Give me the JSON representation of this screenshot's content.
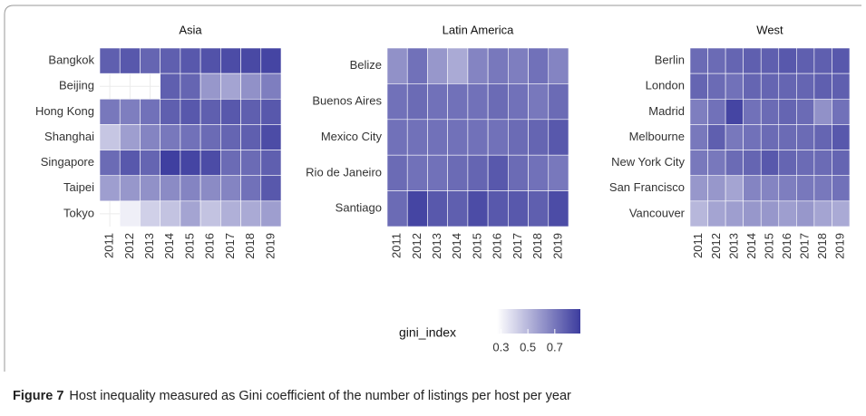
{
  "chart_data": [
    {
      "type": "heatmap",
      "title": "Asia",
      "x": [
        "2011",
        "2012",
        "2013",
        "2014",
        "2015",
        "2016",
        "2017",
        "2018",
        "2019"
      ],
      "y": [
        "Bangkok",
        "Beijing",
        "Hong Kong",
        "Shanghai",
        "Singapore",
        "Taipei",
        "Tokyo"
      ],
      "values": [
        [
          0.78,
          0.8,
          0.76,
          0.78,
          0.8,
          0.82,
          0.84,
          0.85,
          0.86
        ],
        [
          null,
          null,
          null,
          0.78,
          0.76,
          0.6,
          0.56,
          0.62,
          0.68
        ],
        [
          0.7,
          0.68,
          0.72,
          0.78,
          0.8,
          0.78,
          0.8,
          0.78,
          0.8
        ],
        [
          0.45,
          0.58,
          0.66,
          0.7,
          0.72,
          0.74,
          0.76,
          0.78,
          0.84
        ],
        [
          0.74,
          0.8,
          0.76,
          0.88,
          0.86,
          0.84,
          0.74,
          0.74,
          0.78
        ],
        [
          0.58,
          0.6,
          0.62,
          0.64,
          0.66,
          0.64,
          0.66,
          0.72,
          0.8
        ],
        [
          null,
          0.32,
          0.42,
          0.46,
          0.56,
          0.46,
          0.52,
          0.54,
          0.58
        ]
      ]
    },
    {
      "type": "heatmap",
      "title": "Latin America",
      "x": [
        "2011",
        "2012",
        "2013",
        "2014",
        "2015",
        "2016",
        "2017",
        "2018",
        "2019"
      ],
      "y": [
        "Belize",
        "Buenos Aires",
        "Mexico City",
        "Rio de Janeiro",
        "Santiago"
      ],
      "values": [
        [
          0.62,
          0.72,
          0.6,
          0.54,
          0.66,
          0.7,
          0.68,
          0.72,
          0.66
        ],
        [
          0.72,
          0.74,
          0.72,
          0.72,
          0.72,
          0.74,
          0.72,
          0.7,
          0.74
        ],
        [
          0.72,
          0.72,
          0.72,
          0.72,
          0.72,
          0.72,
          0.74,
          0.76,
          0.8
        ],
        [
          0.74,
          0.72,
          0.72,
          0.74,
          0.76,
          0.8,
          0.74,
          0.72,
          0.7
        ],
        [
          0.74,
          0.86,
          0.8,
          0.78,
          0.84,
          0.8,
          0.8,
          0.78,
          0.84
        ]
      ]
    },
    {
      "type": "heatmap",
      "title": "West",
      "x": [
        "2011",
        "2012",
        "2013",
        "2014",
        "2015",
        "2016",
        "2017",
        "2018",
        "2019"
      ],
      "y": [
        "Berlin",
        "London",
        "Madrid",
        "Melbourne",
        "New York City",
        "San Francisco",
        "Vancouver"
      ],
      "values": [
        [
          0.74,
          0.74,
          0.76,
          0.78,
          0.78,
          0.8,
          0.78,
          0.78,
          0.8
        ],
        [
          0.76,
          0.74,
          0.72,
          0.76,
          0.76,
          0.76,
          0.76,
          0.78,
          0.78
        ],
        [
          0.68,
          0.72,
          0.86,
          0.72,
          0.74,
          0.76,
          0.74,
          0.62,
          0.72
        ],
        [
          0.7,
          0.78,
          0.7,
          0.72,
          0.74,
          0.74,
          0.74,
          0.76,
          0.8
        ],
        [
          0.7,
          0.7,
          0.74,
          0.76,
          0.8,
          0.76,
          0.74,
          0.74,
          0.76
        ],
        [
          0.6,
          0.6,
          0.56,
          0.66,
          0.66,
          0.68,
          0.7,
          0.7,
          0.72
        ],
        [
          0.5,
          0.56,
          0.58,
          0.6,
          0.6,
          0.58,
          0.6,
          0.56,
          0.54
        ]
      ]
    }
  ],
  "legend": {
    "title": "gini_index",
    "ticks": [
      0.3,
      0.5,
      0.7
    ],
    "clim": [
      0.27,
      0.89
    ],
    "low": "#ffffff",
    "high": "#3c3c9e"
  },
  "caption": {
    "label": "Figure 7",
    "text": "Host inequality measured as Gini coefficient of the number of listings per host per year"
  }
}
